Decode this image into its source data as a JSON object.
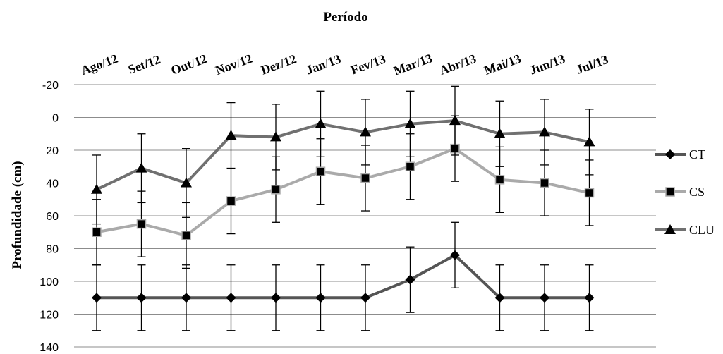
{
  "chart_data": {
    "type": "line",
    "title": "Período",
    "xlabel": "",
    "ylabel": "Profundidade (cm)",
    "ylim": [
      -20,
      140
    ],
    "y_inverted": true,
    "y_ticks": [
      "-20",
      "0",
      "20",
      "40",
      "60",
      "80",
      "100",
      "120",
      "140"
    ],
    "x_axis_position": "top",
    "grid": "horizontal",
    "legend_position": "right",
    "categories": [
      "Ago/12",
      "Set/12",
      "Out/12",
      "Nov/12",
      "Dez/12",
      "Jan/13",
      "Fev/13",
      "Mar/13",
      "Abr/13",
      "Mai/13",
      "Jun/13",
      "Jul/13"
    ],
    "series": [
      {
        "name": "CT",
        "marker": "diamond",
        "color": "#555555",
        "values": [
          110,
          110,
          110,
          110,
          110,
          110,
          110,
          99,
          84,
          110,
          110,
          110
        ],
        "error": [
          20,
          20,
          20,
          20,
          20,
          20,
          20,
          20,
          20,
          20,
          20,
          20
        ]
      },
      {
        "name": "CS",
        "marker": "square",
        "color": "#aaaaaa",
        "values": [
          70,
          65,
          72,
          51,
          44,
          33,
          37,
          30,
          19,
          38,
          40,
          46
        ],
        "error": [
          20,
          20,
          20,
          20,
          20,
          20,
          20,
          20,
          20,
          20,
          20,
          20
        ]
      },
      {
        "name": "CLU",
        "marker": "triangle",
        "color": "#707070",
        "values": [
          44,
          31,
          40,
          11,
          12,
          4,
          9,
          4,
          2,
          10,
          9,
          15
        ],
        "error": [
          21,
          21,
          21,
          20,
          20,
          20,
          20,
          20,
          21,
          20,
          20,
          20
        ]
      }
    ]
  }
}
